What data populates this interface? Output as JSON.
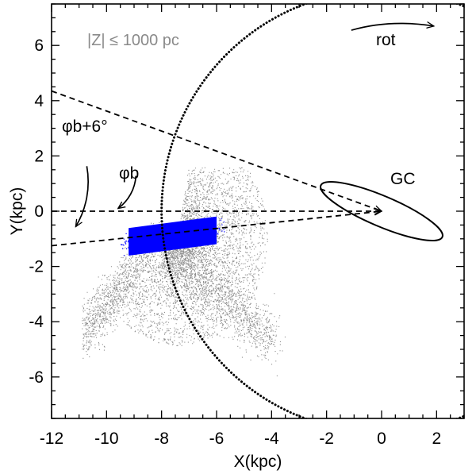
{
  "chart_data": {
    "type": "scatter",
    "xlabel": "X(kpc)",
    "ylabel": "Y(kpc)",
    "xlim": [
      -12,
      3
    ],
    "ylim": [
      -7.5,
      7.5
    ],
    "xticks": [
      -12,
      -10,
      -8,
      -6,
      -4,
      -2,
      0,
      2
    ],
    "yticks": [
      -6,
      -4,
      -2,
      0,
      2,
      4,
      6
    ],
    "region_label": "|Z| ≤ 1000 pc",
    "rotation_label": "rot",
    "gc_label": "GC",
    "phi_b_label": "φb",
    "phi_b6_label": "φb+6°",
    "sun": {
      "x": -8,
      "y": 0
    },
    "solar_circle_radius_kpc": 8,
    "sight_lines": [
      {
        "name": "l=0",
        "from": [
          -12,
          0
        ],
        "to": [
          0,
          0
        ]
      },
      {
        "name": "upper",
        "from": [
          -12,
          4.35
        ],
        "to": [
          0,
          0
        ]
      },
      {
        "name": "lower",
        "from": [
          -12,
          -1.25
        ],
        "to": [
          0,
          0
        ]
      }
    ],
    "bar_ellipse": {
      "center": [
        0,
        0
      ],
      "semi_major_kpc": 2.4,
      "semi_minor_kpc": 0.55,
      "angle_deg": -23
    },
    "series": [
      {
        "name": "all stars",
        "color": "#888888",
        "description": "grey point cloud"
      },
      {
        "name": "selected stars",
        "color": "#0000ff",
        "x_range": [
          -9.2,
          -6.0
        ],
        "y_center": -0.9
      }
    ]
  }
}
